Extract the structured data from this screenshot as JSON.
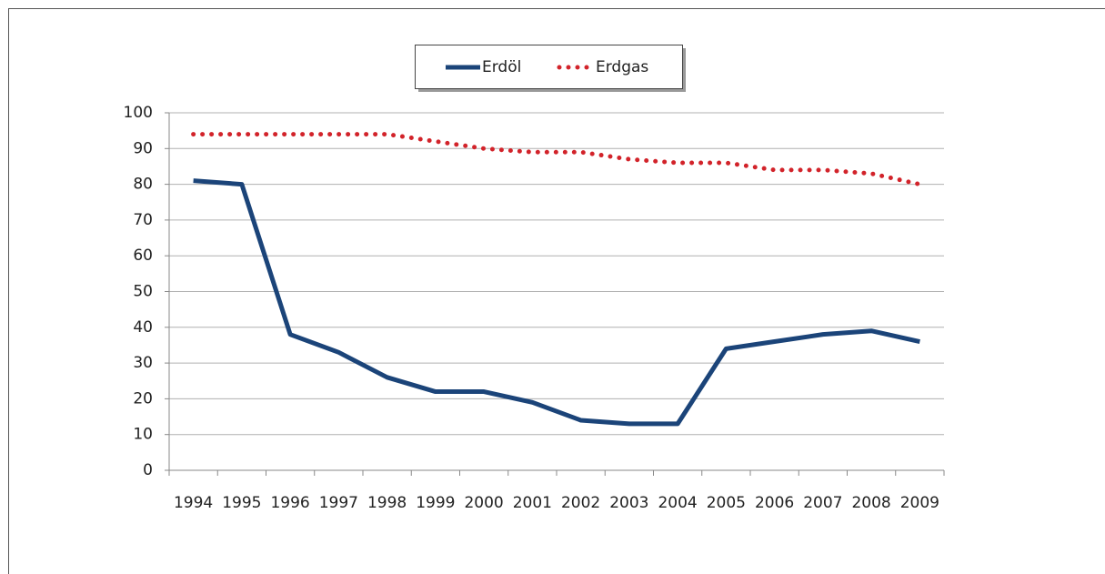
{
  "chart_data": {
    "type": "line",
    "categories": [
      "1994",
      "1995",
      "1996",
      "1997",
      "1998",
      "1999",
      "2000",
      "2001",
      "2002",
      "2003",
      "2004",
      "2005",
      "2006",
      "2007",
      "2008",
      "2009"
    ],
    "series": [
      {
        "name": "Erdöl",
        "color": "#1b4479",
        "style": "solid",
        "values": [
          81,
          80,
          38,
          33,
          26,
          22,
          22,
          19,
          14,
          13,
          13,
          34,
          36,
          38,
          39,
          36
        ]
      },
      {
        "name": "Erdgas",
        "color": "#d2232a",
        "style": "dotted",
        "values": [
          94,
          94,
          94,
          94,
          94,
          92,
          90,
          89,
          89,
          87,
          86,
          86,
          84,
          84,
          83,
          80
        ]
      }
    ],
    "ylim": [
      0,
      100
    ],
    "yticks": [
      0,
      10,
      20,
      30,
      40,
      50,
      60,
      70,
      80,
      90,
      100
    ],
    "grid": true,
    "legend": "top"
  }
}
